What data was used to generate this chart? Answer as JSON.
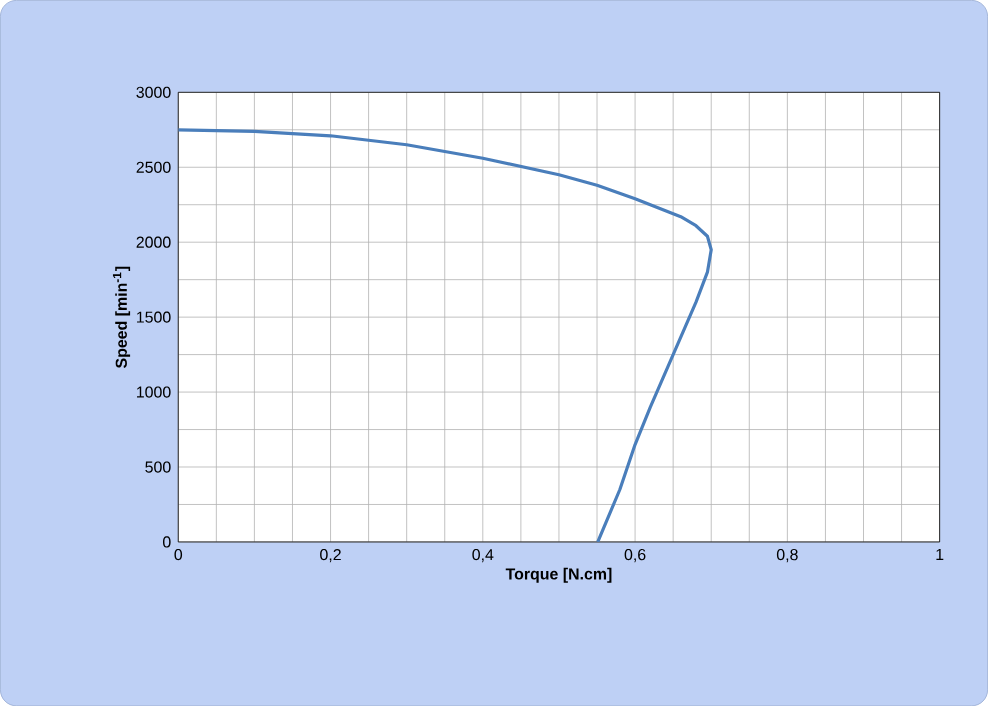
{
  "chart_data": {
    "type": "line",
    "xlabel": "Torque [N.cm]",
    "ylabel": "Speed [min$^{-1}$]",
    "series": [
      {
        "color": "#4a7ebb",
        "x": [
          0,
          0.1,
          0.2,
          0.3,
          0.4,
          0.5,
          0.55,
          0.6,
          0.63,
          0.66,
          0.68,
          0.695,
          0.7,
          0.695,
          0.68,
          0.65,
          0.62,
          0.6,
          0.58,
          0.551
        ],
        "values": [
          2750,
          2740,
          2710,
          2650,
          2560,
          2450,
          2380,
          2290,
          2230,
          2170,
          2110,
          2040,
          1950,
          1800,
          1600,
          1250,
          900,
          650,
          350,
          0
        ]
      }
    ],
    "xlim": [
      0,
      1
    ],
    "ylim": [
      0,
      3000
    ],
    "xticks": [
      0,
      {
        "value": 0.2,
        "label": "0,2"
      },
      {
        "value": 0.4,
        "label": "0,4"
      },
      {
        "value": 0.6,
        "label": "0,6"
      },
      {
        "value": 0.8,
        "label": "0,8"
      },
      1
    ],
    "yticks": [
      0,
      500,
      1000,
      1500,
      2000,
      2500,
      3000
    ],
    "grid": true,
    "marker": "none",
    "line_style": "solid"
  }
}
